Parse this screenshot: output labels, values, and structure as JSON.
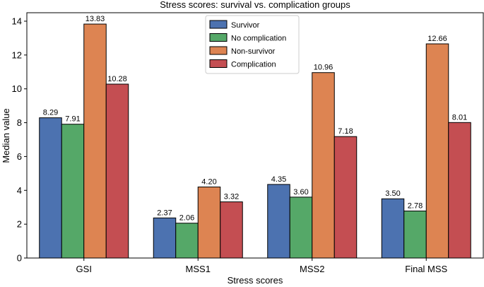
{
  "chart_data": {
    "type": "bar",
    "title": "Stress scores: survival vs. complication groups",
    "xlabel": "Stress scores",
    "ylabel": "Median value",
    "categories": [
      "GSI",
      "MSS1",
      "MSS2",
      "Final MSS"
    ],
    "ylim": [
      0,
      14.5
    ],
    "yticks": [
      0,
      2,
      4,
      6,
      8,
      10,
      12,
      14
    ],
    "legend_position": "top-center",
    "grid": false,
    "series": [
      {
        "name": "Survivor",
        "color": "#4c72b0",
        "values": [
          8.29,
          2.37,
          4.35,
          3.5
        ],
        "labels": [
          "8.29",
          "2.37",
          "4.35",
          "3.50"
        ]
      },
      {
        "name": "No complication",
        "color": "#55a868",
        "values": [
          7.91,
          2.06,
          3.6,
          2.78
        ],
        "labels": [
          "7.91",
          "2.06",
          "3.60",
          "2.78"
        ]
      },
      {
        "name": "Non-survivor",
        "color": "#dd8452",
        "values": [
          13.83,
          4.2,
          10.96,
          12.66
        ],
        "labels": [
          "13.83",
          "4.20",
          "10.96",
          "12.66"
        ]
      },
      {
        "name": "Complication",
        "color": "#c44e52",
        "values": [
          10.28,
          3.32,
          7.18,
          8.01
        ],
        "labels": [
          "10.28",
          "3.32",
          "7.18",
          "8.01"
        ]
      }
    ]
  }
}
